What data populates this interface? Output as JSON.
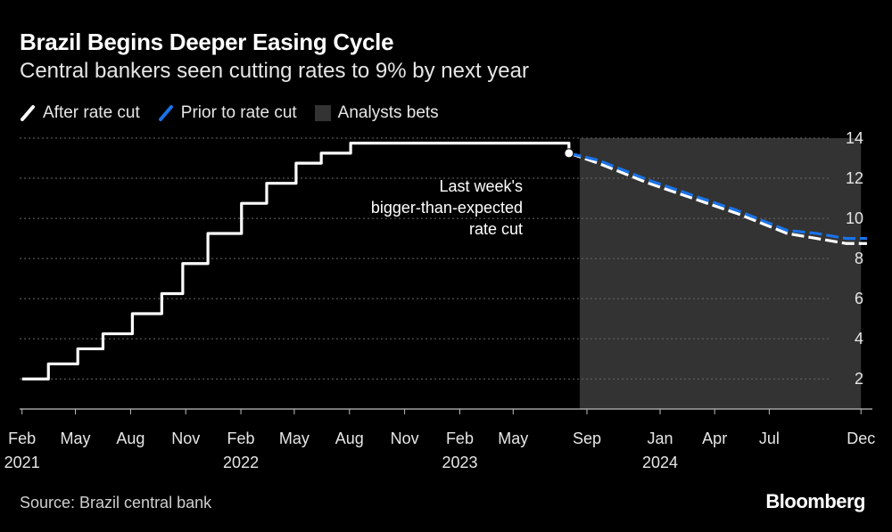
{
  "header": {
    "title": "Brazil Begins Deeper Easing Cycle",
    "subtitle": "Central bankers seen cutting rates to 9% by next year"
  },
  "legend": [
    {
      "label": "After rate cut",
      "color": "#ffffff",
      "kind": "slash"
    },
    {
      "label": "Prior to rate cut",
      "color": "#1a73e8",
      "kind": "slash"
    },
    {
      "label": "Analysts bets",
      "color": "#333333",
      "kind": "box"
    }
  ],
  "footer": {
    "source": "Source: Brazil central bank",
    "brand": "Bloomberg"
  },
  "chart_data": {
    "type": "line",
    "title": "Brazil Begins Deeper Easing Cycle",
    "subtitle": "Central bankers seen cutting rates to 9% by next year",
    "ylim": [
      0.5,
      14
    ],
    "yticks": [
      2,
      4,
      6,
      8,
      10,
      12,
      14
    ],
    "xlim": [
      "2021-01-28",
      "2024-12-20"
    ],
    "grid": true,
    "legend_position": "top-left",
    "x_tick_labels": [
      {
        "date": "2021-02-01",
        "label": "Feb",
        "year": "2021"
      },
      {
        "date": "2021-05-01",
        "label": "May",
        "year": ""
      },
      {
        "date": "2021-08-01",
        "label": "Aug",
        "year": ""
      },
      {
        "date": "2021-11-01",
        "label": "Nov",
        "year": ""
      },
      {
        "date": "2022-02-01",
        "label": "Feb",
        "year": "2022"
      },
      {
        "date": "2022-05-01",
        "label": "May",
        "year": ""
      },
      {
        "date": "2022-08-01",
        "label": "Aug",
        "year": ""
      },
      {
        "date": "2022-11-01",
        "label": "Nov",
        "year": ""
      },
      {
        "date": "2023-02-01",
        "label": "Feb",
        "year": "2023"
      },
      {
        "date": "2023-05-01",
        "label": "May",
        "year": ""
      },
      {
        "date": "2023-09-01",
        "label": "Sep",
        "year": ""
      },
      {
        "date": "2024-01-01",
        "label": "Jan",
        "year": "2024"
      },
      {
        "date": "2024-04-01",
        "label": "Apr",
        "year": ""
      },
      {
        "date": "2024-07-01",
        "label": "Jul",
        "year": ""
      },
      {
        "date": "2024-12-01",
        "label": "Dec",
        "year": ""
      }
    ],
    "shaded_region": {
      "label": "Analysts bets",
      "start": "2023-08-20",
      "end": "2024-12-01"
    },
    "annotation": {
      "lines": [
        "Last week's",
        "bigger-than-expected",
        "rate cut"
      ],
      "date": "2023-08-02",
      "value": 13.25
    },
    "series": [
      {
        "name": "After rate cut",
        "color": "#ffffff",
        "style": "solid",
        "step": true,
        "points": [
          [
            "2021-02-01",
            2.0
          ],
          [
            "2021-03-17",
            2.75
          ],
          [
            "2021-05-05",
            3.5
          ],
          [
            "2021-06-16",
            4.25
          ],
          [
            "2021-08-04",
            5.25
          ],
          [
            "2021-09-22",
            6.25
          ],
          [
            "2021-10-27",
            7.75
          ],
          [
            "2021-12-08",
            9.25
          ],
          [
            "2022-02-02",
            10.75
          ],
          [
            "2022-03-16",
            11.75
          ],
          [
            "2022-05-04",
            12.75
          ],
          [
            "2022-06-15",
            13.25
          ],
          [
            "2022-08-03",
            13.75
          ],
          [
            "2023-08-02",
            13.25
          ]
        ]
      },
      {
        "name": "After rate cut",
        "color": "#ffffff",
        "style": "dashed",
        "step": false,
        "points": [
          [
            "2023-08-02",
            13.25
          ],
          [
            "2023-09-20",
            12.75
          ],
          [
            "2023-11-01",
            12.25
          ],
          [
            "2023-12-13",
            11.75
          ],
          [
            "2024-01-31",
            11.25
          ],
          [
            "2024-03-20",
            10.75
          ],
          [
            "2024-05-08",
            10.25
          ],
          [
            "2024-06-19",
            9.75
          ],
          [
            "2024-07-31",
            9.25
          ],
          [
            "2024-09-18",
            9.0
          ],
          [
            "2024-11-06",
            8.75
          ],
          [
            "2024-12-11",
            8.75
          ]
        ]
      },
      {
        "name": "Prior to rate cut",
        "color": "#1a73e8",
        "style": "dashed",
        "step": false,
        "points": [
          [
            "2023-08-02",
            13.25
          ],
          [
            "2023-09-20",
            12.9
          ],
          [
            "2023-11-01",
            12.4
          ],
          [
            "2023-12-13",
            11.9
          ],
          [
            "2024-01-31",
            11.4
          ],
          [
            "2024-03-20",
            10.9
          ],
          [
            "2024-05-08",
            10.4
          ],
          [
            "2024-06-19",
            9.9
          ],
          [
            "2024-07-31",
            9.4
          ],
          [
            "2024-09-18",
            9.25
          ],
          [
            "2024-11-06",
            9.0
          ],
          [
            "2024-12-11",
            9.0
          ]
        ]
      }
    ]
  }
}
